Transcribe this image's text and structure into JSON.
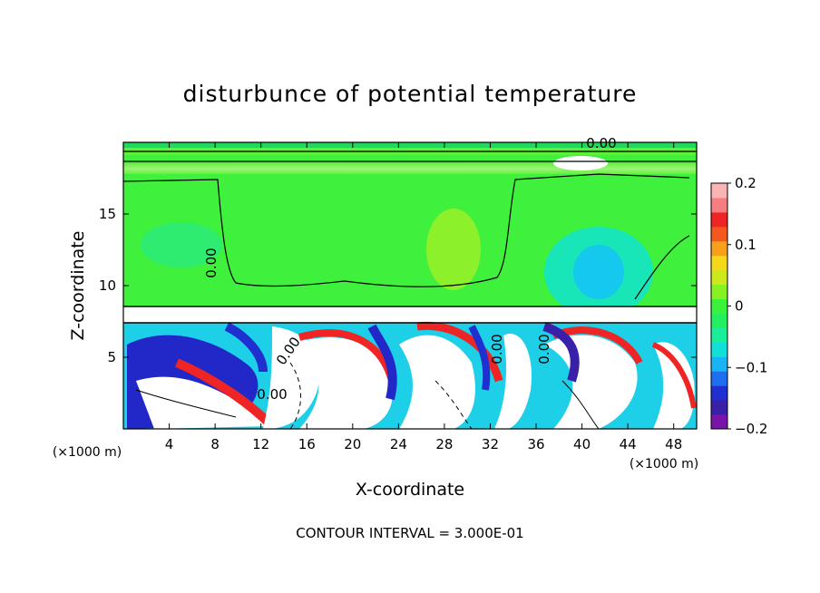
{
  "chart_data": {
    "type": "heatmap",
    "title": "disturbunce of potential temperature",
    "xlabel": "X-coordinate",
    "ylabel": "Z-coordinate",
    "x_unit_left": "(×1000 m)",
    "x_unit_right": "(×1000 m)",
    "x_ticks": [
      "4",
      "8",
      "12",
      "16",
      "20",
      "24",
      "28",
      "32",
      "36",
      "40",
      "44",
      "48"
    ],
    "x_tick_values": [
      4,
      8,
      12,
      16,
      20,
      24,
      28,
      32,
      36,
      40,
      44,
      48
    ],
    "y_ticks": [
      "5",
      "10",
      "15"
    ],
    "y_tick_values": [
      5,
      10,
      15
    ],
    "xlim": [
      0,
      50
    ],
    "ylim": [
      0,
      20
    ],
    "colorbar": {
      "ticks": [
        "0.2",
        "0.1",
        "0",
        "−0.1",
        "−0.2"
      ],
      "tick_values": [
        0.2,
        0.1,
        0,
        -0.1,
        -0.2
      ],
      "range": [
        -0.2,
        0.2
      ],
      "colors": [
        "#7a14a8",
        "#3a1fa8",
        "#1f2fd0",
        "#1e6ef0",
        "#19b4f5",
        "#10e0d8",
        "#1aee9a",
        "#22f060",
        "#3bf23a",
        "#86f221",
        "#cde81c",
        "#f6d81a",
        "#f8a01b",
        "#f4581e",
        "#ef2424",
        "#f77e80",
        "#fbb4b4"
      ]
    },
    "contour_labels": [
      "0.00",
      "0.00",
      "0.00",
      "0.00",
      "0.00",
      "0.00"
    ],
    "footer": "CONTOUR INTERVAL = 3.000E-01"
  }
}
